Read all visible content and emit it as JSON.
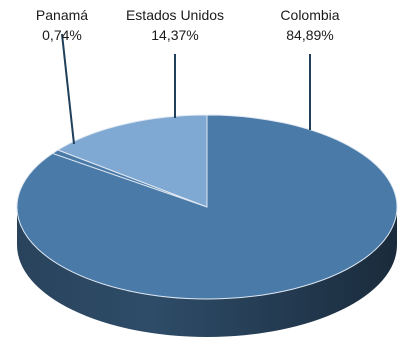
{
  "chart_data": {
    "type": "pie",
    "style": "3d",
    "slices": [
      {
        "name": "Colombia",
        "value": 84.89,
        "label": "84,89%",
        "color": "#4a7aa8"
      },
      {
        "name": "Estados Unidos",
        "value": 14.37,
        "label": "14,37%",
        "color": "#7fa8d3"
      },
      {
        "name": "Panamá",
        "value": 0.74,
        "label": "0,74%",
        "color": "#4a7aa8"
      }
    ],
    "legend": "none",
    "leader_line_color": "#1f3f5a"
  }
}
